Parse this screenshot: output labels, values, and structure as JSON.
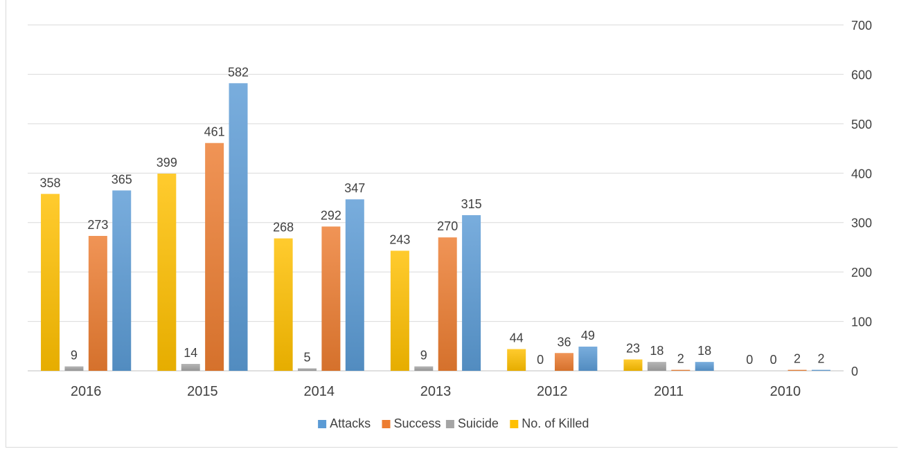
{
  "chart_data": {
    "type": "bar",
    "categories": [
      "2016",
      "2015",
      "2014",
      "2013",
      "2012",
      "2011",
      "2010"
    ],
    "series": [
      {
        "name": "No. of Killed",
        "color": "#ffc000",
        "values": [
          358,
          399,
          268,
          243,
          44,
          23,
          0
        ]
      },
      {
        "name": "Suicide",
        "color": "#a5a5a5",
        "values": [
          9,
          14,
          5,
          9,
          0,
          18,
          0
        ]
      },
      {
        "name": "Success",
        "color": "#ed7d31",
        "values": [
          273,
          461,
          292,
          270,
          36,
          2,
          2
        ]
      },
      {
        "name": "Attacks",
        "color": "#5b9bd5",
        "values": [
          365,
          582,
          347,
          315,
          49,
          18,
          2
        ]
      }
    ],
    "legend_order": [
      "Attacks",
      "Success",
      "Suicide",
      "No. of Killed"
    ],
    "ylim": [
      0,
      700
    ],
    "yticks": [
      0,
      100,
      200,
      300,
      400,
      500,
      600,
      700
    ],
    "y_axis_side": "right",
    "grid": true,
    "legend_position": "bottom",
    "title": "",
    "xlabel": "",
    "ylabel": ""
  }
}
